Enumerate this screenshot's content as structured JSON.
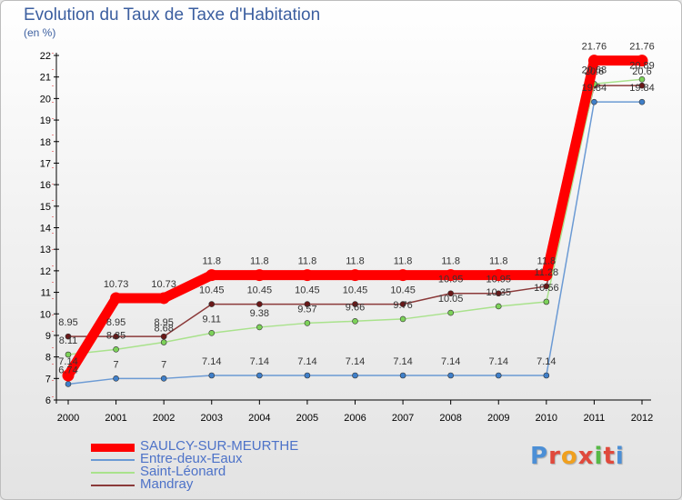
{
  "title": "Evolution du Taux de Taxe d'Habitation",
  "unit_label": "(en %)",
  "logo_text": "Proxiti",
  "chart_data": {
    "type": "line",
    "title": "Evolution du Taux de Taxe d'Habitation",
    "ylabel": "(en %)",
    "xlabel": "",
    "x": [
      "2000",
      "2001",
      "2002",
      "2003",
      "2004",
      "2005",
      "2006",
      "2007",
      "2008",
      "2009",
      "2010",
      "2011",
      "2012"
    ],
    "ylim": [
      6,
      22
    ],
    "yticks": [
      "6",
      "7",
      "8",
      "9",
      "10",
      "11",
      "12",
      "13",
      "14",
      "15",
      "16",
      "17",
      "18",
      "19",
      "20",
      "21",
      "22"
    ],
    "grid": false,
    "legend_position": "bottom-left",
    "series": [
      {
        "name": "SAULCY-SUR-MEURTHE",
        "color": "#ff0000",
        "values": [
          7.14,
          10.73,
          10.73,
          11.8,
          11.8,
          11.8,
          11.8,
          11.8,
          11.8,
          11.8,
          11.8,
          21.76,
          21.76
        ],
        "labels": [
          "7.14",
          "10.73",
          "10.73",
          "11.8",
          "11.8",
          "11.8",
          "11.8",
          "11.8",
          "11.8",
          "11.8",
          "11.8",
          "21.76",
          "21.76"
        ]
      },
      {
        "name": "Entre-deux-Eaux",
        "color": "#6b9ad4",
        "marker": "#3f7fc9",
        "values": [
          6.74,
          7,
          7,
          7.14,
          7.14,
          7.14,
          7.14,
          7.14,
          7.14,
          7.14,
          7.14,
          19.84,
          19.84
        ],
        "labels": [
          "6.74",
          "7",
          "7",
          "7.14",
          "7.14",
          "7.14",
          "7.14",
          "7.14",
          "7.14",
          "7.14",
          "7.14",
          "19.84",
          "19.84"
        ]
      },
      {
        "name": "Saint-Léonard",
        "color": "#a9e28c",
        "marker": "#7cd159",
        "values": [
          8.11,
          8.35,
          8.68,
          9.11,
          9.38,
          9.57,
          9.66,
          9.76,
          10.05,
          10.35,
          10.56,
          20.68,
          20.89
        ],
        "labels": [
          "8.11",
          "8.35",
          "8.68",
          "9.11",
          "9.38",
          "9.57",
          "9.66",
          "9.76",
          "10.05",
          "10.35",
          "10.56",
          "20.68",
          "20.89"
        ]
      },
      {
        "name": "Mandray",
        "color": "#8b3a3a",
        "marker": "#6a1818",
        "values": [
          8.95,
          8.95,
          8.95,
          10.45,
          10.45,
          10.45,
          10.45,
          10.45,
          10.95,
          10.95,
          11.28,
          20.6,
          20.6
        ],
        "labels": [
          "8.95",
          "8.95",
          "8.95",
          "10.45",
          "10.45",
          "10.45",
          "10.45",
          "10.45",
          "10.95",
          "10.95",
          "11.28",
          "20.6",
          "20.6"
        ]
      }
    ]
  }
}
